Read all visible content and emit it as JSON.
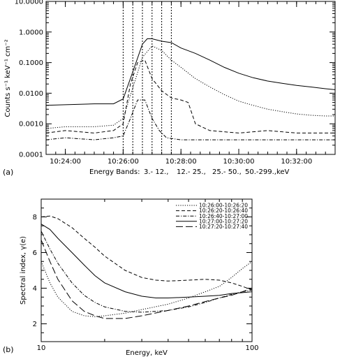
{
  "chart_data": [
    {
      "panel_label": "(a)",
      "type": "line",
      "ylabel": "Counts s⁻¹ keV⁻¹ cm⁻²",
      "xlabel_prefix": "Energy Bands:",
      "band_labels": [
        "3.- 12.,",
        "12.- 25.,",
        "25.- 50.,",
        "50.-299.,keV"
      ],
      "yscale": "log",
      "ylim": [
        0.0001,
        10
      ],
      "xlim": [
        "10:23:20",
        "10:33:20"
      ],
      "yticks": [
        "0.0001",
        "0.0010",
        "0.0100",
        "0.1000",
        "1.0000",
        "10.0000"
      ],
      "xticks": [
        "10:24:00",
        "10:26:00",
        "10:28:00",
        "10:30:00",
        "10:32:00"
      ],
      "vlines": [
        "10:26:00",
        "10:26:20",
        "10:26:40",
        "10:27:00",
        "10:27:20",
        "10:27:40"
      ],
      "series": [
        {
          "style": "solid",
          "x": [
            "10:23:20",
            "10:24:00",
            "10:25:00",
            "10:25:40",
            "10:26:00",
            "10:26:20",
            "10:26:40",
            "10:26:50",
            "10:27:00",
            "10:27:20",
            "10:27:40",
            "10:28:00",
            "10:28:30",
            "10:29:00",
            "10:29:30",
            "10:30:00",
            "10:30:30",
            "10:31:00",
            "10:31:30",
            "10:32:00",
            "10:32:30",
            "10:33:00",
            "10:33:20"
          ],
          "y": [
            0.004,
            0.0042,
            0.0045,
            0.0045,
            0.0065,
            0.05,
            0.4,
            0.6,
            0.6,
            0.5,
            0.45,
            0.3,
            0.2,
            0.12,
            0.07,
            0.045,
            0.032,
            0.025,
            0.021,
            0.018,
            0.016,
            0.014,
            0.013
          ]
        },
        {
          "style": "dotted",
          "x": [
            "10:23:20",
            "10:24:00",
            "10:25:00",
            "10:25:40",
            "10:26:00",
            "10:26:20",
            "10:26:40",
            "10:27:00",
            "10:27:20",
            "10:27:40",
            "10:28:00",
            "10:28:30",
            "10:29:00",
            "10:29:30",
            "10:30:00",
            "10:30:30",
            "10:31:00",
            "10:31:30",
            "10:32:00",
            "10:32:30",
            "10:33:00",
            "10:33:20"
          ],
          "y": [
            0.0007,
            0.0008,
            0.0008,
            0.0009,
            0.0015,
            0.015,
            0.15,
            0.35,
            0.25,
            0.12,
            0.07,
            0.03,
            0.016,
            0.009,
            0.0055,
            0.004,
            0.003,
            0.0025,
            0.0021,
            0.0019,
            0.0018,
            0.0018
          ]
        },
        {
          "style": "dashed",
          "x": [
            "10:23:20",
            "10:24:00",
            "10:25:00",
            "10:25:40",
            "10:26:00",
            "10:26:15",
            "10:26:30",
            "10:26:45",
            "10:27:00",
            "10:27:20",
            "10:27:40",
            "10:28:00",
            "10:28:15",
            "10:28:30",
            "10:29:00",
            "10:30:00",
            "10:31:00",
            "10:32:00",
            "10:33:00",
            "10:33:20"
          ],
          "y": [
            0.0005,
            0.0006,
            0.0005,
            0.0006,
            0.001,
            0.02,
            0.1,
            0.12,
            0.03,
            0.012,
            0.007,
            0.006,
            0.005,
            0.001,
            0.0006,
            0.0005,
            0.0006,
            0.0005,
            0.0005,
            0.0005
          ]
        },
        {
          "style": "dashdot",
          "x": [
            "10:23:20",
            "10:24:00",
            "10:25:00",
            "10:25:40",
            "10:26:00",
            "10:26:15",
            "10:26:30",
            "10:26:45",
            "10:27:00",
            "10:27:15",
            "10:27:30",
            "10:28:00",
            "10:29:00",
            "10:30:00",
            "10:31:00",
            "10:32:00",
            "10:33:00",
            "10:33:20"
          ],
          "y": [
            0.0003,
            0.00035,
            0.0003,
            0.00035,
            0.0004,
            0.0015,
            0.006,
            0.006,
            0.0015,
            0.0006,
            0.00035,
            0.0003,
            0.0003,
            0.0003,
            0.0003,
            0.0003,
            0.0003,
            0.0003
          ]
        }
      ]
    },
    {
      "panel_label": "(b)",
      "type": "line",
      "xlabel": "Energy, keV",
      "ylabel": "Spectral index, γ(e)",
      "xscale": "log",
      "xlim": [
        10,
        100
      ],
      "ylim": [
        1,
        9
      ],
      "xticks": [
        "10",
        "100"
      ],
      "yticks": [
        "2",
        "4",
        "6",
        "8"
      ],
      "legend_position": "top-right",
      "series": [
        {
          "name": "10:26:00-10:26:20",
          "style": "dotted",
          "x": [
            10,
            11,
            12,
            14,
            16,
            18,
            20,
            25,
            30,
            40,
            50,
            60,
            70,
            80,
            90,
            100
          ],
          "y": [
            5.5,
            4.3,
            3.5,
            2.7,
            2.45,
            2.4,
            2.45,
            2.6,
            2.8,
            3.1,
            3.45,
            3.8,
            4.1,
            4.6,
            5.1,
            5.5
          ]
        },
        {
          "name": "10:26:20-10:26:40",
          "style": "dashed",
          "x": [
            10,
            11,
            12,
            14,
            16,
            18,
            20,
            25,
            30,
            35,
            40,
            50,
            60,
            70,
            80,
            90,
            100
          ],
          "y": [
            8.0,
            8.05,
            7.9,
            7.4,
            6.8,
            6.3,
            5.8,
            5.0,
            4.6,
            4.45,
            4.4,
            4.45,
            4.5,
            4.45,
            4.3,
            4.1,
            3.9
          ]
        },
        {
          "name": "10:26:40-10:27:00",
          "style": "dashdot",
          "x": [
            10,
            11,
            12,
            14,
            16,
            18,
            20,
            25,
            30,
            40,
            50,
            60,
            70,
            80,
            90,
            100
          ],
          "y": [
            7.2,
            6.2,
            5.4,
            4.3,
            3.6,
            3.2,
            2.95,
            2.7,
            2.65,
            2.75,
            2.95,
            3.2,
            3.45,
            3.65,
            3.8,
            3.9
          ]
        },
        {
          "name": "10:27:00-10:27:20",
          "style": "solid",
          "x": [
            10,
            11,
            12,
            14,
            16,
            18,
            20,
            25,
            30,
            35,
            40,
            50,
            60,
            70,
            80,
            90,
            100
          ],
          "y": [
            7.6,
            7.3,
            6.8,
            6.0,
            5.3,
            4.7,
            4.3,
            3.8,
            3.55,
            3.45,
            3.45,
            3.5,
            3.55,
            3.6,
            3.7,
            3.75,
            3.8
          ]
        },
        {
          "name": "10:27:20-10:27:40",
          "style": "longdash",
          "x": [
            10,
            11,
            12,
            14,
            16,
            18,
            20,
            25,
            30,
            40,
            50,
            60,
            70,
            80,
            90,
            100
          ],
          "y": [
            6.7,
            5.5,
            4.5,
            3.3,
            2.7,
            2.45,
            2.3,
            2.3,
            2.45,
            2.75,
            3.0,
            3.25,
            3.45,
            3.6,
            3.8,
            4.0
          ]
        }
      ]
    }
  ]
}
